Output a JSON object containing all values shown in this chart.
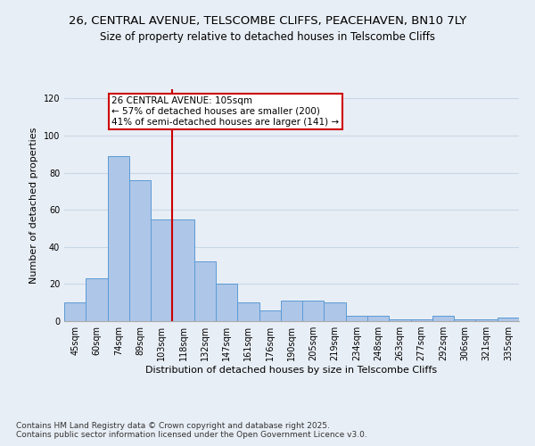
{
  "title": "26, CENTRAL AVENUE, TELSCOMBE CLIFFS, PEACEHAVEN, BN10 7LY",
  "subtitle": "Size of property relative to detached houses in Telscombe Cliffs",
  "xlabel": "Distribution of detached houses by size in Telscombe Cliffs",
  "ylabel": "Number of detached properties",
  "categories": [
    "45sqm",
    "60sqm",
    "74sqm",
    "89sqm",
    "103sqm",
    "118sqm",
    "132sqm",
    "147sqm",
    "161sqm",
    "176sqm",
    "190sqm",
    "205sqm",
    "219sqm",
    "234sqm",
    "248sqm",
    "263sqm",
    "277sqm",
    "292sqm",
    "306sqm",
    "321sqm",
    "335sqm"
  ],
  "values": [
    10,
    23,
    89,
    76,
    55,
    55,
    32,
    20,
    10,
    6,
    11,
    11,
    10,
    3,
    3,
    1,
    1,
    3,
    1,
    1,
    2
  ],
  "bar_color": "#aec6e8",
  "bar_edge_color": "#5b9bd5",
  "ref_line_idx": 4,
  "annotation_text": "26 CENTRAL AVENUE: 105sqm\n← 57% of detached houses are smaller (200)\n41% of semi-detached houses are larger (141) →",
  "annotation_box_color": "#ffffff",
  "annotation_box_edge_color": "#cc0000",
  "ylim": [
    0,
    125
  ],
  "yticks": [
    0,
    20,
    40,
    60,
    80,
    100,
    120
  ],
  "grid_color": "#c8d8e8",
  "bg_color": "#e8eef5",
  "footer": "Contains HM Land Registry data © Crown copyright and database right 2025.\nContains public sector information licensed under the Open Government Licence v3.0.",
  "title_fontsize": 9.5,
  "subtitle_fontsize": 8.5,
  "axis_label_fontsize": 8,
  "tick_fontsize": 7,
  "annotation_fontsize": 7.5,
  "footer_fontsize": 6.5
}
